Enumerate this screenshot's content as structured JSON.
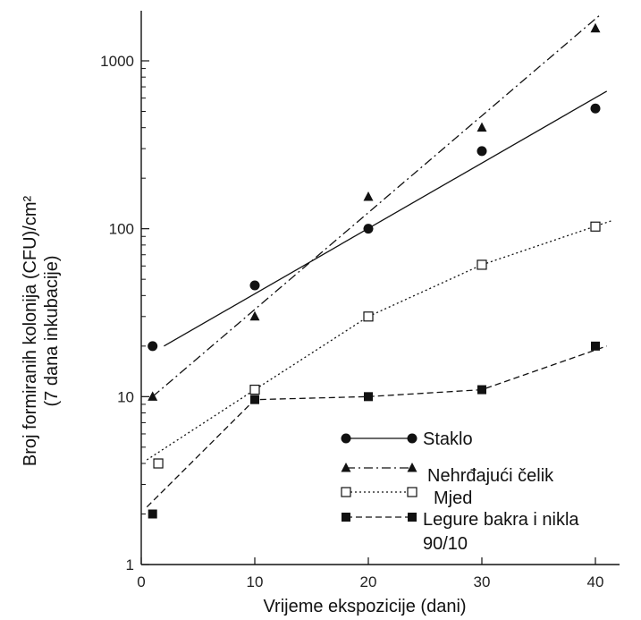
{
  "chart_data": {
    "type": "scatter",
    "title": "",
    "xlabel": "Vrijeme ekspozicije (dani)",
    "ylabel_line1": "Broj formiranih kolonija (CFU)/cm²",
    "ylabel_line2": "(7 dana inkubacije)",
    "xlim": [
      0,
      42
    ],
    "ylim": [
      1,
      2000
    ],
    "yscale": "log",
    "x_ticks": [
      "0",
      "10",
      "20",
      "30",
      "40"
    ],
    "y_ticks": [
      "1",
      "10",
      "100",
      "1000"
    ],
    "grid": false,
    "legend_placement": "bottom-right",
    "series": [
      {
        "name": "Staklo",
        "marker": "filled-circle",
        "line_style": "solid",
        "points": [
          [
            1,
            20
          ],
          [
            10,
            46
          ],
          [
            20,
            100
          ],
          [
            30,
            290
          ],
          [
            40,
            520
          ]
        ],
        "fit_line": [
          [
            2,
            20
          ],
          [
            41,
            660
          ]
        ]
      },
      {
        "name": "Nehrđajući čelik",
        "marker": "filled-triangle",
        "line_style": "dash-dot",
        "points": [
          [
            1,
            10
          ],
          [
            10,
            30
          ],
          [
            20,
            155
          ],
          [
            30,
            400
          ],
          [
            40,
            1560
          ]
        ],
        "fit_line": [
          [
            1,
            10
          ],
          [
            40.5,
            1900
          ]
        ]
      },
      {
        "name": "Mjed",
        "marker": "open-square",
        "line_style": "dotted",
        "points": [
          [
            1.5,
            4
          ],
          [
            10,
            11
          ],
          [
            20,
            30
          ],
          [
            30,
            61
          ],
          [
            40,
            103
          ]
        ],
        "fit_line": [
          [
            0.5,
            4.2
          ],
          [
            10,
            11
          ],
          [
            20,
            30
          ],
          [
            30,
            61
          ],
          [
            41.5,
            112
          ]
        ]
      },
      {
        "name": "Legure bakra i nikla 90/10",
        "legend_line1": "Legure bakra i nikla",
        "legend_line2": "90/10",
        "marker": "filled-square",
        "line_style": "dashed",
        "points": [
          [
            1,
            2
          ],
          [
            10,
            9.6
          ],
          [
            20,
            10
          ],
          [
            30,
            11
          ],
          [
            40,
            20
          ]
        ],
        "fit_line": [
          [
            0.5,
            2.2
          ],
          [
            10,
            9.6
          ],
          [
            20,
            10
          ],
          [
            30,
            11
          ],
          [
            41,
            20
          ]
        ]
      }
    ]
  }
}
